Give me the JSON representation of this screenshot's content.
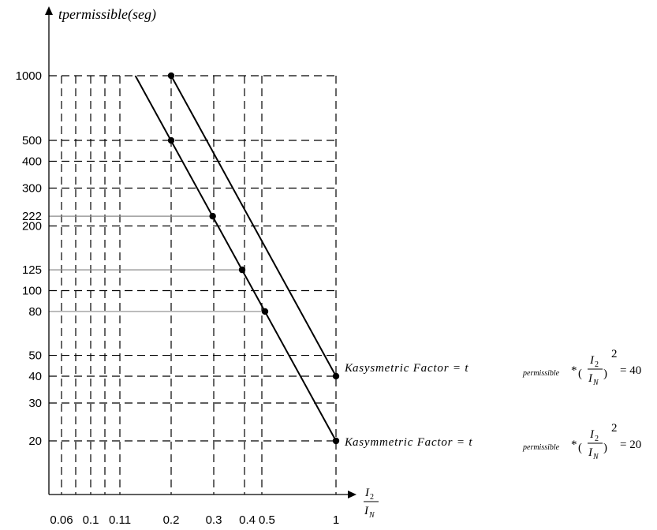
{
  "chart_data": {
    "type": "line",
    "ylabel": "tpermissible(seg)",
    "xlabel_num": "I",
    "xlabel_num_sub": "2",
    "xlabel_den": "I",
    "xlabel_den_sub": "N",
    "scale": "log-log",
    "x_ticks": [
      "0.06",
      "0.1",
      "0.11",
      "0.2",
      "0.3",
      "0.4",
      "0.5",
      "1"
    ],
    "x_grid": [
      0.06,
      0.07,
      0.08,
      0.09,
      0.1,
      0.11,
      0.2,
      0.3,
      0.4,
      0.5,
      1
    ],
    "y_ticks": [
      "1000",
      "500",
      "400",
      "300",
      "222",
      "200",
      "125",
      "100",
      "80",
      "50",
      "40",
      "30",
      "20"
    ],
    "y_grid": [
      1000,
      500,
      400,
      300,
      200,
      100,
      50,
      40,
      30,
      20
    ],
    "reference_lines": [
      222,
      125,
      80
    ],
    "series": [
      {
        "name": "K asymmetric factor = 40",
        "x": [
          0.2,
          1
        ],
        "y": [
          1000,
          40
        ],
        "line": [
          [
            0.2,
            1000
          ],
          [
            1,
            40
          ]
        ]
      },
      {
        "name": "K asymmetric factor = 20",
        "x": [
          0.2,
          0.3,
          0.4,
          0.5,
          1
        ],
        "y": [
          500,
          222,
          125,
          80,
          20
        ],
        "line": [
          [
            0.141,
            1000
          ],
          [
            1,
            20
          ]
        ]
      }
    ],
    "annotations": [
      {
        "k": "K",
        "text": "asysmetric Factor = t",
        "sub": "permissible",
        "mult": "*",
        "value": "= 40"
      },
      {
        "k": "K",
        "text": "asymmetric Factor = t",
        "sub": "permissible",
        "mult": "*",
        "value": "= 20"
      }
    ],
    "frac": {
      "num": "I",
      "num_sub": "2",
      "den": "I",
      "den_sub": "N",
      "exp": "2"
    }
  }
}
